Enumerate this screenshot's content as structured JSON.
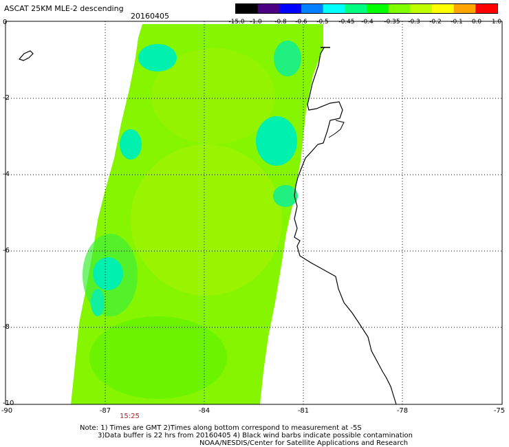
{
  "header": {
    "title": "ASCAT 25KM MLE-2 descending",
    "date": "20160405"
  },
  "colorbar": {
    "ticks": [
      "-15.0",
      "-1.0",
      "-0.8",
      "-0.6",
      "-0.5",
      "-0.45",
      "-0.4",
      "-0.35",
      "-0.3",
      "-0.2",
      "-0.1",
      "0.0",
      "1.0"
    ],
    "colors": [
      "#000000",
      "#4b0082",
      "#0000ff",
      "#0080ff",
      "#00ffff",
      "#00ff80",
      "#00ff00",
      "#80ff00",
      "#c0ff00",
      "#ffff00",
      "#ffa500",
      "#ff0000"
    ]
  },
  "map": {
    "lat_labels": [
      "0",
      "-2",
      "-4",
      "-6",
      "-8",
      "-10"
    ],
    "lon_labels": [
      "-90",
      "-87",
      "-84",
      "-81",
      "-78",
      "-75"
    ],
    "time_label": "15:25"
  },
  "notes": {
    "line1": "Note: 1) Times are GMT 2)Times along bottom correspond to measurement at -5S",
    "line2": "3)Data buffer is 22 hrs from 20160405 4) Black wind barbs indicate possible contamination",
    "line3": "NOAA/NESDIS/Center for Satellite Applications and Research"
  }
}
